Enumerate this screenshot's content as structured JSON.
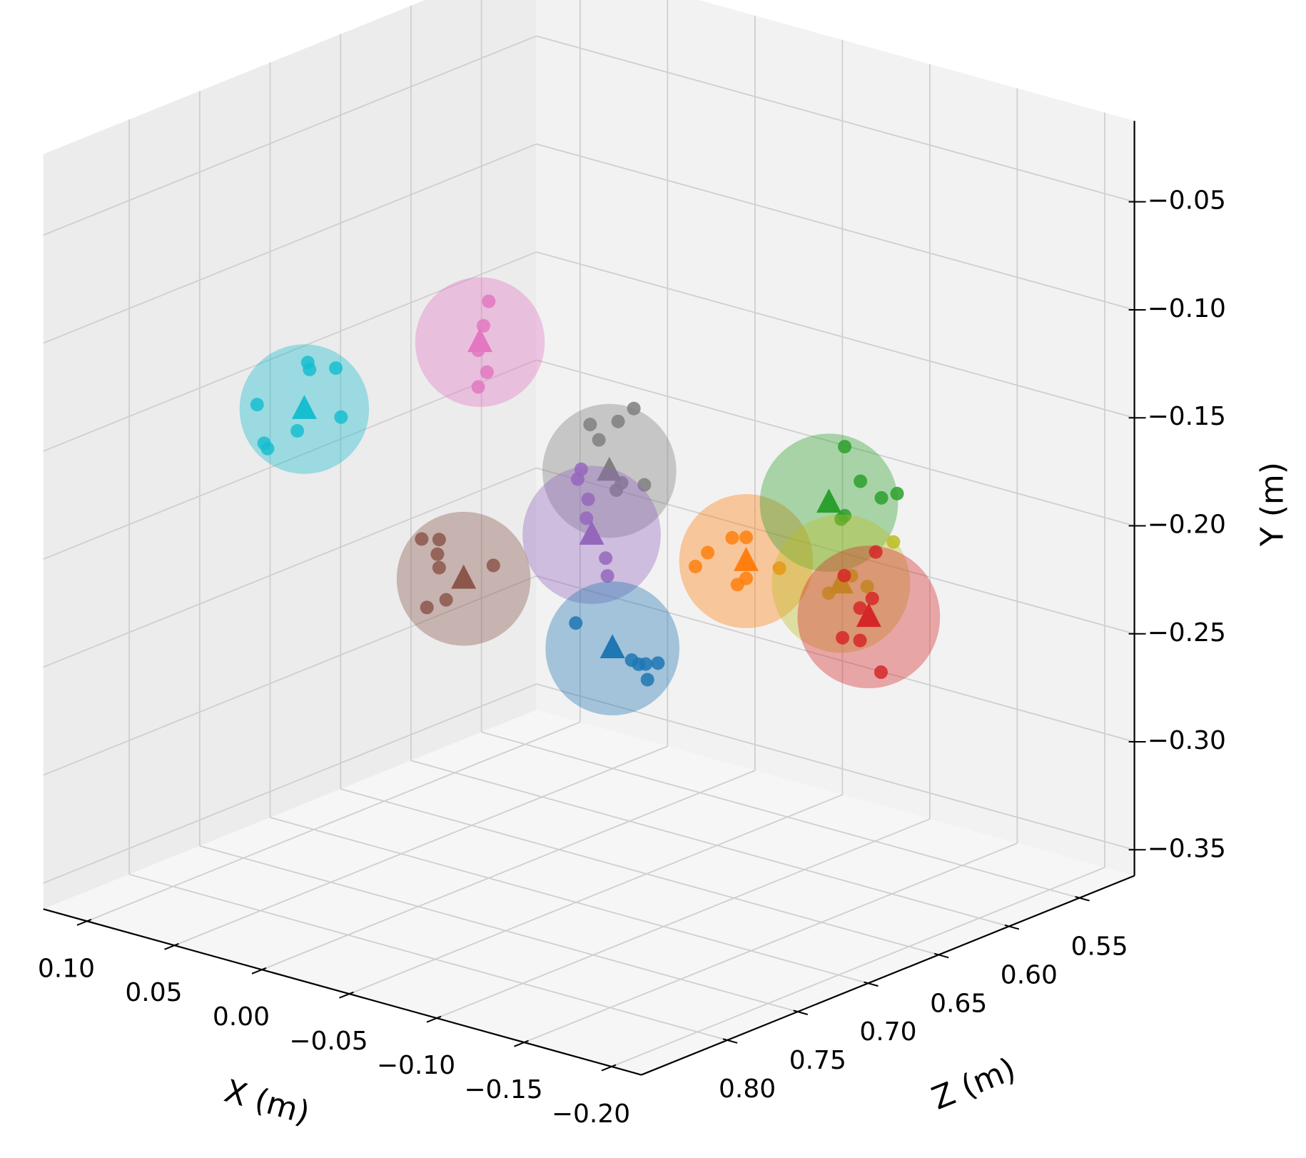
{
  "chart_data": {
    "type": "scatter3d",
    "xlabel": "X (m)",
    "ylabel": "Y (m)",
    "zlabel": "Z (m)",
    "xlim": [
      -0.217,
      0.125
    ],
    "ylim": [
      -0.362,
      -0.0125
    ],
    "zlim": [
      0.511,
      0.861
    ],
    "xticks": [
      {
        "value": 0.1,
        "label": "0.10"
      },
      {
        "value": 0.05,
        "label": "0.05"
      },
      {
        "value": 0,
        "label": "0.00"
      },
      {
        "value": -0.05,
        "label": "−0.05"
      },
      {
        "value": -0.1,
        "label": "−0.10"
      },
      {
        "value": -0.15,
        "label": "−0.15"
      },
      {
        "value": -0.2,
        "label": "−0.20"
      }
    ],
    "yticks": [
      {
        "value": -0.05,
        "label": "−0.05"
      },
      {
        "value": -0.1,
        "label": "−0.10"
      },
      {
        "value": -0.15,
        "label": "−0.15"
      },
      {
        "value": -0.2,
        "label": "−0.20"
      },
      {
        "value": -0.25,
        "label": "−0.25"
      },
      {
        "value": -0.3,
        "label": "−0.30"
      },
      {
        "value": -0.35,
        "label": "−0.35"
      }
    ],
    "zticks": [
      {
        "value": 0.55,
        "label": "0.55"
      },
      {
        "value": 0.6,
        "label": "0.60"
      },
      {
        "value": 0.65,
        "label": "0.65"
      },
      {
        "value": 0.7,
        "label": "0.70"
      },
      {
        "value": 0.75,
        "label": "0.75"
      },
      {
        "value": 0.8,
        "label": "0.80"
      }
    ],
    "grid": true,
    "series": [
      {
        "color": "#17becf",
        "radius": 0.03,
        "centroid": {
          "x": 0.041,
          "y": -0.133,
          "z": 0.78
        },
        "x": [
          0.039,
          0.023,
          0.068,
          0.02,
          0.045,
          0.064,
          0.062,
          0.038
        ],
        "y": [
          -0.111,
          -0.11,
          -0.137,
          -0.132,
          -0.144,
          -0.154,
          -0.156,
          -0.114
        ],
        "z": [
          0.78,
          0.78,
          0.78,
          0.78,
          0.78,
          0.78,
          0.78,
          0.78
        ]
      },
      {
        "color": "#e377c2",
        "radius": 0.03,
        "centroid": {
          "x": 0.005,
          "y": -0.115,
          "z": 0.7
        },
        "x": [
          0.0,
          0.003,
          0.001,
          0.006,
          0.006
        ],
        "y": [
          -0.095,
          -0.107,
          -0.128,
          -0.136,
          -0.119
        ],
        "z": [
          0.7,
          0.7,
          0.7,
          0.7,
          0.7
        ]
      },
      {
        "color": "#7f7f7f",
        "radius": 0.031,
        "centroid": {
          "x": -0.069,
          "y": -0.158,
          "z": 0.7
        },
        "x": [
          -0.083,
          -0.074,
          -0.058,
          -0.063,
          -0.089,
          -0.076,
          -0.073
        ],
        "y": [
          -0.126,
          -0.134,
          -0.139,
          -0.145,
          -0.16,
          -0.162,
          -0.166
        ],
        "z": [
          0.7,
          0.7,
          0.7,
          0.7,
          0.7,
          0.7,
          0.7
        ]
      },
      {
        "color": "#9467bd",
        "radius": 0.032,
        "centroid": {
          "x": -0.075,
          "y": -0.181,
          "z": 0.72
        },
        "x": [
          -0.069,
          -0.067,
          -0.073,
          -0.072,
          -0.083,
          -0.084
        ],
        "y": [
          -0.152,
          -0.157,
          -0.165,
          -0.174,
          -0.19,
          -0.198
        ],
        "z": [
          0.72,
          0.72,
          0.72,
          0.72,
          0.72,
          0.72
        ]
      },
      {
        "color": "#8c564b",
        "radius": 0.031,
        "centroid": {
          "x": -0.034,
          "y": -0.2,
          "z": 0.76
        },
        "x": [
          -0.01,
          -0.02,
          -0.019,
          -0.02,
          -0.051,
          -0.024,
          -0.013
        ],
        "y": [
          -0.187,
          -0.185,
          -0.192,
          -0.198,
          -0.19,
          -0.212,
          -0.218
        ],
        "z": [
          0.76,
          0.76,
          0.76,
          0.76,
          0.76,
          0.76,
          0.76
        ]
      },
      {
        "color": "#1f77b4",
        "radius": 0.031,
        "centroid": {
          "x": -0.103,
          "y": -0.222,
          "z": 0.74
        },
        "x": [
          -0.082,
          -0.114,
          -0.118,
          -0.122,
          -0.129,
          -0.123
        ],
        "y": [
          -0.215,
          -0.225,
          -0.226,
          -0.225,
          -0.223,
          -0.232
        ],
        "z": [
          0.74,
          0.74,
          0.74,
          0.74,
          0.74,
          0.74
        ]
      },
      {
        "color": "#ff7f0e",
        "radius": 0.031,
        "centroid": {
          "x": -0.115,
          "y": -0.2,
          "z": 0.66
        },
        "x": [
          -0.107,
          -0.115,
          -0.093,
          -0.086,
          -0.134,
          -0.115,
          -0.11
        ],
        "y": [
          -0.191,
          -0.189,
          -0.201,
          -0.209,
          -0.199,
          -0.208,
          -0.212
        ],
        "z": [
          0.66,
          0.66,
          0.66,
          0.66,
          0.66,
          0.66,
          0.66
        ]
      },
      {
        "color": "#2ca02c",
        "radius": 0.032,
        "centroid": {
          "x": -0.114,
          "y": -0.189,
          "z": 0.6
        },
        "x": [
          -0.123,
          -0.132,
          -0.153,
          -0.144,
          -0.123,
          -0.121
        ],
        "y": [
          -0.161,
          -0.175,
          -0.176,
          -0.18,
          -0.193,
          -0.195
        ],
        "z": [
          0.6,
          0.6,
          0.6,
          0.6,
          0.6,
          0.6
        ]
      },
      {
        "color": "#bcbd22",
        "radius": 0.032,
        "centroid": {
          "x": -0.137,
          "y": -0.216,
          "z": 0.62
        },
        "x": [
          -0.167,
          -0.152,
          -0.143,
          -0.13
        ],
        "y": [
          -0.19,
          -0.214,
          -0.211,
          -0.222
        ],
        "z": [
          0.62,
          0.62,
          0.62,
          0.62
        ]
      },
      {
        "color": "#d62728",
        "radius": 0.033,
        "centroid": {
          "x": -0.169,
          "y": -0.219,
          "z": 0.64
        },
        "x": [
          -0.173,
          -0.155,
          -0.171,
          -0.164,
          -0.154,
          -0.164,
          -0.176
        ],
        "y": [
          -0.188,
          -0.203,
          -0.21,
          -0.216,
          -0.232,
          -0.231,
          -0.243
        ],
        "z": [
          0.64,
          0.64,
          0.64,
          0.64,
          0.64,
          0.64,
          0.64
        ]
      }
    ]
  }
}
